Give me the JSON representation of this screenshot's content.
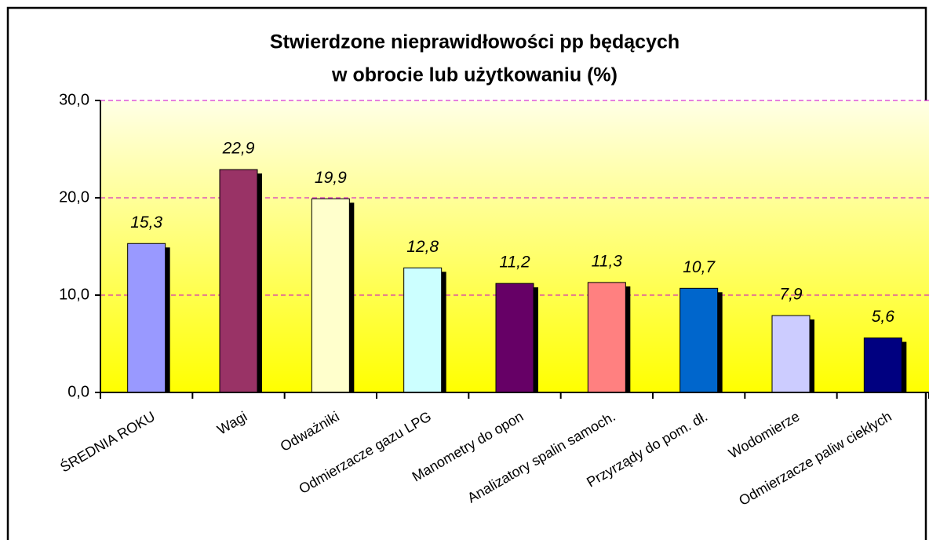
{
  "chart_data": {
    "type": "bar",
    "title": [
      "Stwierdzone nieprawidłowości pp będących",
      "w obrocie lub użytkowaniu (%)"
    ],
    "categories": [
      "ŚREDNIA ROKU",
      "Wagi",
      "Odważniki",
      "Odmierzacze gazu LPG",
      "Manometry do opon",
      "Analizatory spalin samoch.",
      "Przyrządy do pom. dł.",
      "Wodomierze",
      "Odmierzacze paliw ciekłych"
    ],
    "values": [
      15.3,
      22.9,
      19.9,
      12.8,
      11.2,
      11.3,
      10.7,
      7.9,
      5.6
    ],
    "value_labels": [
      "15,3",
      "22,9",
      "19,9",
      "12,8",
      "11,2",
      "11,3",
      "10,7",
      "7,9",
      "5,6"
    ],
    "colors": [
      "#9999ff",
      "#993366",
      "#ffffcc",
      "#ccffff",
      "#660066",
      "#ff8080",
      "#0066cc",
      "#ccccff",
      "#000080"
    ],
    "ylim": [
      0,
      30
    ],
    "yticks": [
      {
        "value": 0,
        "label": "0,0"
      },
      {
        "value": 10,
        "label": "10,0"
      },
      {
        "value": 20,
        "label": "20,0"
      },
      {
        "value": 30,
        "label": "30,0"
      }
    ],
    "grid": true
  }
}
